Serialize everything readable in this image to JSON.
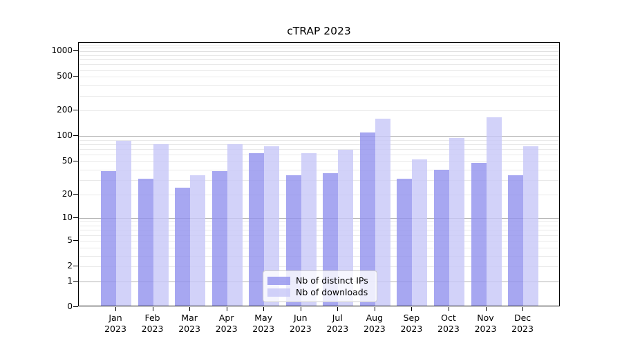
{
  "chart_data": {
    "type": "bar",
    "title": "cTRAP 2023",
    "categories": [
      "Jan",
      "Feb",
      "Mar",
      "Apr",
      "May",
      "Jun",
      "Jul",
      "Aug",
      "Sep",
      "Oct",
      "Nov",
      "Dec"
    ],
    "year_label": "2023",
    "series": [
      {
        "name": "Nb of distinct IPs",
        "color": "#9191ee",
        "values": [
          37,
          30,
          23,
          37,
          60,
          33,
          35,
          106,
          30,
          38,
          46,
          33
        ]
      },
      {
        "name": "Nb of downloads",
        "color": "#c7c7f8",
        "values": [
          85,
          78,
          33,
          77,
          73,
          61,
          67,
          155,
          51,
          92,
          160,
          73
        ]
      }
    ],
    "bar_alpha": 0.8,
    "yscale": "log1p",
    "yticks": [
      0,
      1,
      2,
      5,
      10,
      20,
      50,
      100,
      200,
      500,
      1000
    ],
    "ylim": [
      0,
      1258
    ],
    "grid": true,
    "legend_position": "lower center",
    "colors": {
      "major_grid": "#b3b3b3",
      "minor_grid": "#e9e9e9",
      "spine": "#000000",
      "text": "#000000"
    }
  }
}
